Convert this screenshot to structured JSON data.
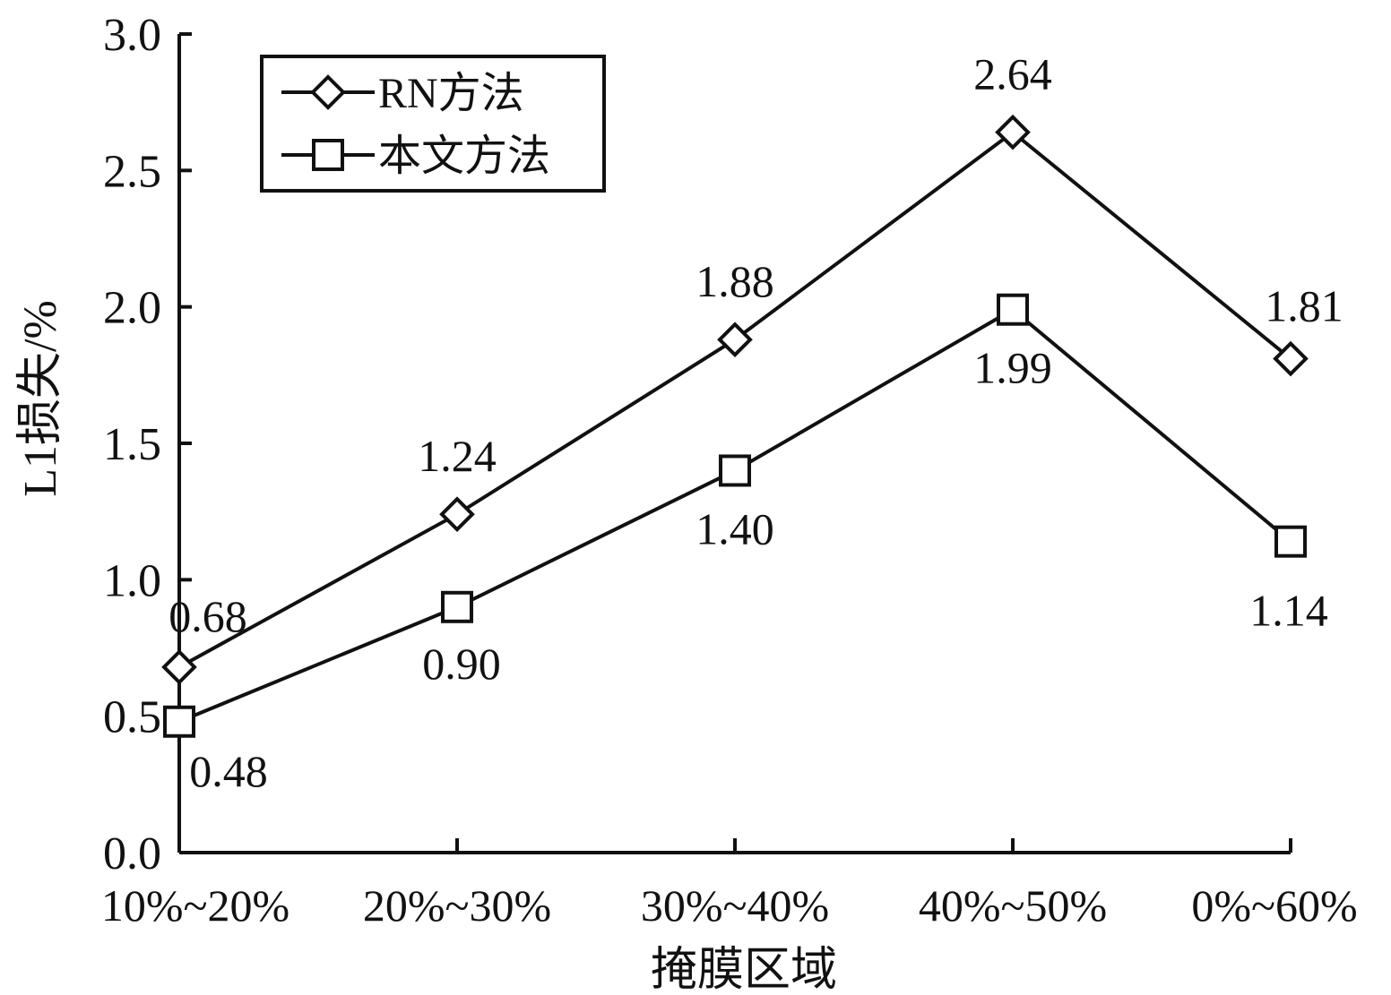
{
  "chart_data": {
    "type": "line",
    "title": "",
    "xlabel": "掩膜区域",
    "ylabel": "L1损失/%",
    "categories": [
      "10%~20%",
      "20%~30%",
      "30%~40%",
      "40%~50%",
      "0%~60%"
    ],
    "ylim": [
      0.0,
      3.0
    ],
    "yticks": [
      "0.0",
      "0.5",
      "1.0",
      "1.5",
      "2.0",
      "2.5",
      "3.0"
    ],
    "grid": false,
    "legend_position": "top-left",
    "series": [
      {
        "name": "RN方法",
        "marker": "diamond",
        "values": [
          0.68,
          1.24,
          1.88,
          2.64,
          1.81
        ],
        "labels": [
          "0.68",
          "1.24",
          "1.88",
          "2.64",
          "1.81"
        ],
        "label_side": "above"
      },
      {
        "name": "本文方法",
        "marker": "square",
        "values": [
          0.48,
          0.9,
          1.4,
          1.99,
          1.14
        ],
        "labels": [
          "0.48",
          "0.90",
          "1.40",
          "1.99",
          "1.14"
        ],
        "label_side": "below"
      }
    ],
    "colors": {
      "line": "#111111",
      "background": "#ffffff"
    }
  }
}
